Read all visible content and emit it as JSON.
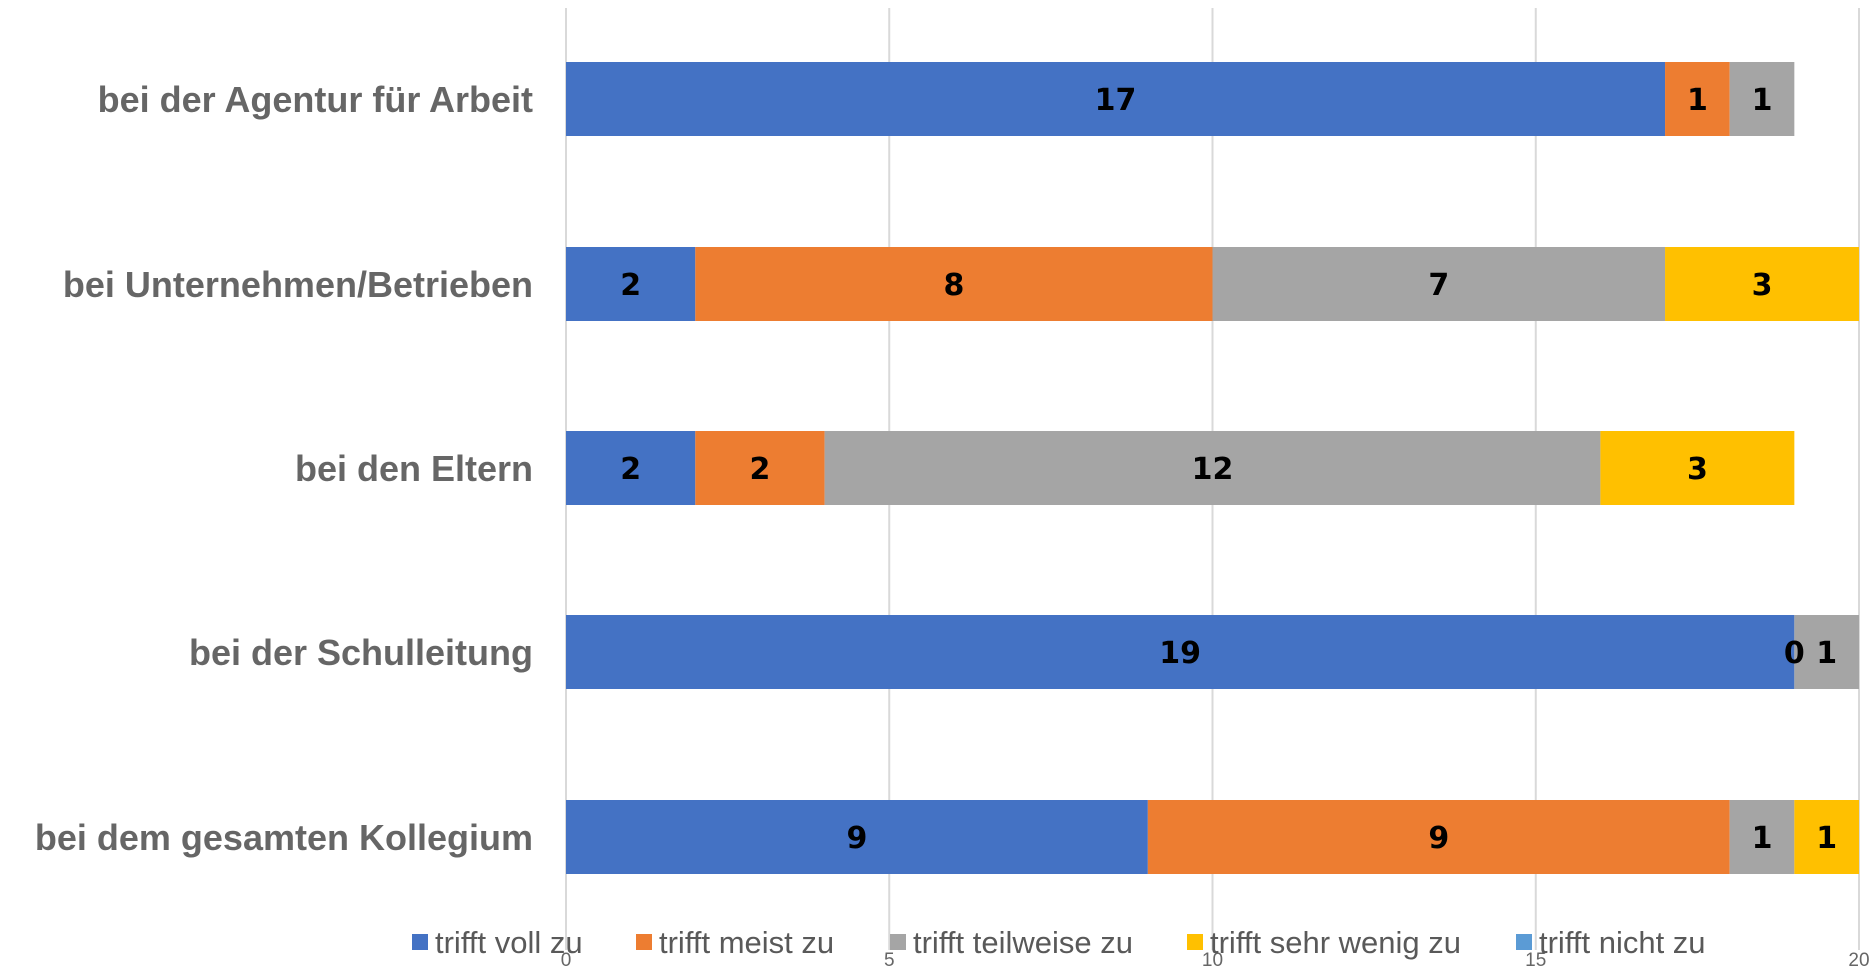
{
  "chart_data": {
    "type": "bar",
    "orientation": "horizontal",
    "stacked": true,
    "categories": [
      "bei der Agentur für Arbeit",
      "bei Unternehmen/Betrieben",
      "bei den Eltern",
      "bei der Schulleitung",
      "bei dem gesamten Kollegium"
    ],
    "series": [
      {
        "name": "trifft voll zu",
        "color": "#4472C4",
        "values": [
          17,
          2,
          2,
          19,
          9
        ]
      },
      {
        "name": "trifft meist zu",
        "color": "#ED7D31",
        "values": [
          1,
          8,
          2,
          0,
          9
        ]
      },
      {
        "name": "trifft teilweise zu",
        "color": "#A5A5A5",
        "values": [
          1,
          7,
          12,
          1,
          1
        ]
      },
      {
        "name": "trifft sehr wenig zu",
        "color": "#FFC000",
        "values": [
          null,
          3,
          3,
          null,
          1
        ]
      },
      {
        "name": "trifft nicht zu",
        "color": "#5B9BD5",
        "values": [
          null,
          null,
          null,
          null,
          null
        ]
      }
    ],
    "x_ticks": [
      0,
      5,
      10,
      15,
      20
    ],
    "xlim": [
      0,
      20
    ],
    "grid": true,
    "legend_position": "bottom",
    "title": "",
    "xlabel": "",
    "ylabel": ""
  }
}
